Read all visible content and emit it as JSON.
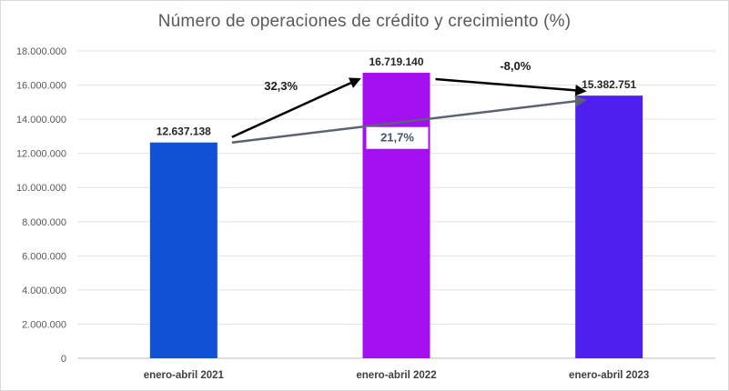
{
  "chart_data": {
    "type": "bar",
    "title": "Número de operaciones de crédito y crecimiento (%)",
    "categories": [
      "enero-abril 2021",
      "enero-abril 2022",
      "enero-abril 2023"
    ],
    "values": [
      12637138,
      16719140,
      15382751
    ],
    "value_labels": [
      "12.637.138",
      "16.719.140",
      "15.382.751"
    ],
    "bar_colors": [
      "#1151d6",
      "#a30ff0",
      "#4f1ff0"
    ],
    "ylim": [
      0,
      18000000
    ],
    "yticks": [
      0,
      2000000,
      4000000,
      6000000,
      8000000,
      10000000,
      12000000,
      14000000,
      16000000,
      18000000
    ],
    "ytick_labels": [
      "0",
      "2.000.000",
      "4.000.000",
      "6.000.000",
      "8.000.000",
      "10.000.000",
      "12.000.000",
      "14.000.000",
      "16.000.000",
      "18.000.000"
    ],
    "grid": true,
    "xlabel": "",
    "ylabel": "",
    "annotations": [
      {
        "from": 0,
        "to": 1,
        "label": "32,3%",
        "color": "#000000"
      },
      {
        "from": 1,
        "to": 2,
        "label": "-8,0%",
        "color": "#000000"
      },
      {
        "from": 0,
        "to": 2,
        "label": "21,7%",
        "color": "#5a6470"
      }
    ]
  }
}
